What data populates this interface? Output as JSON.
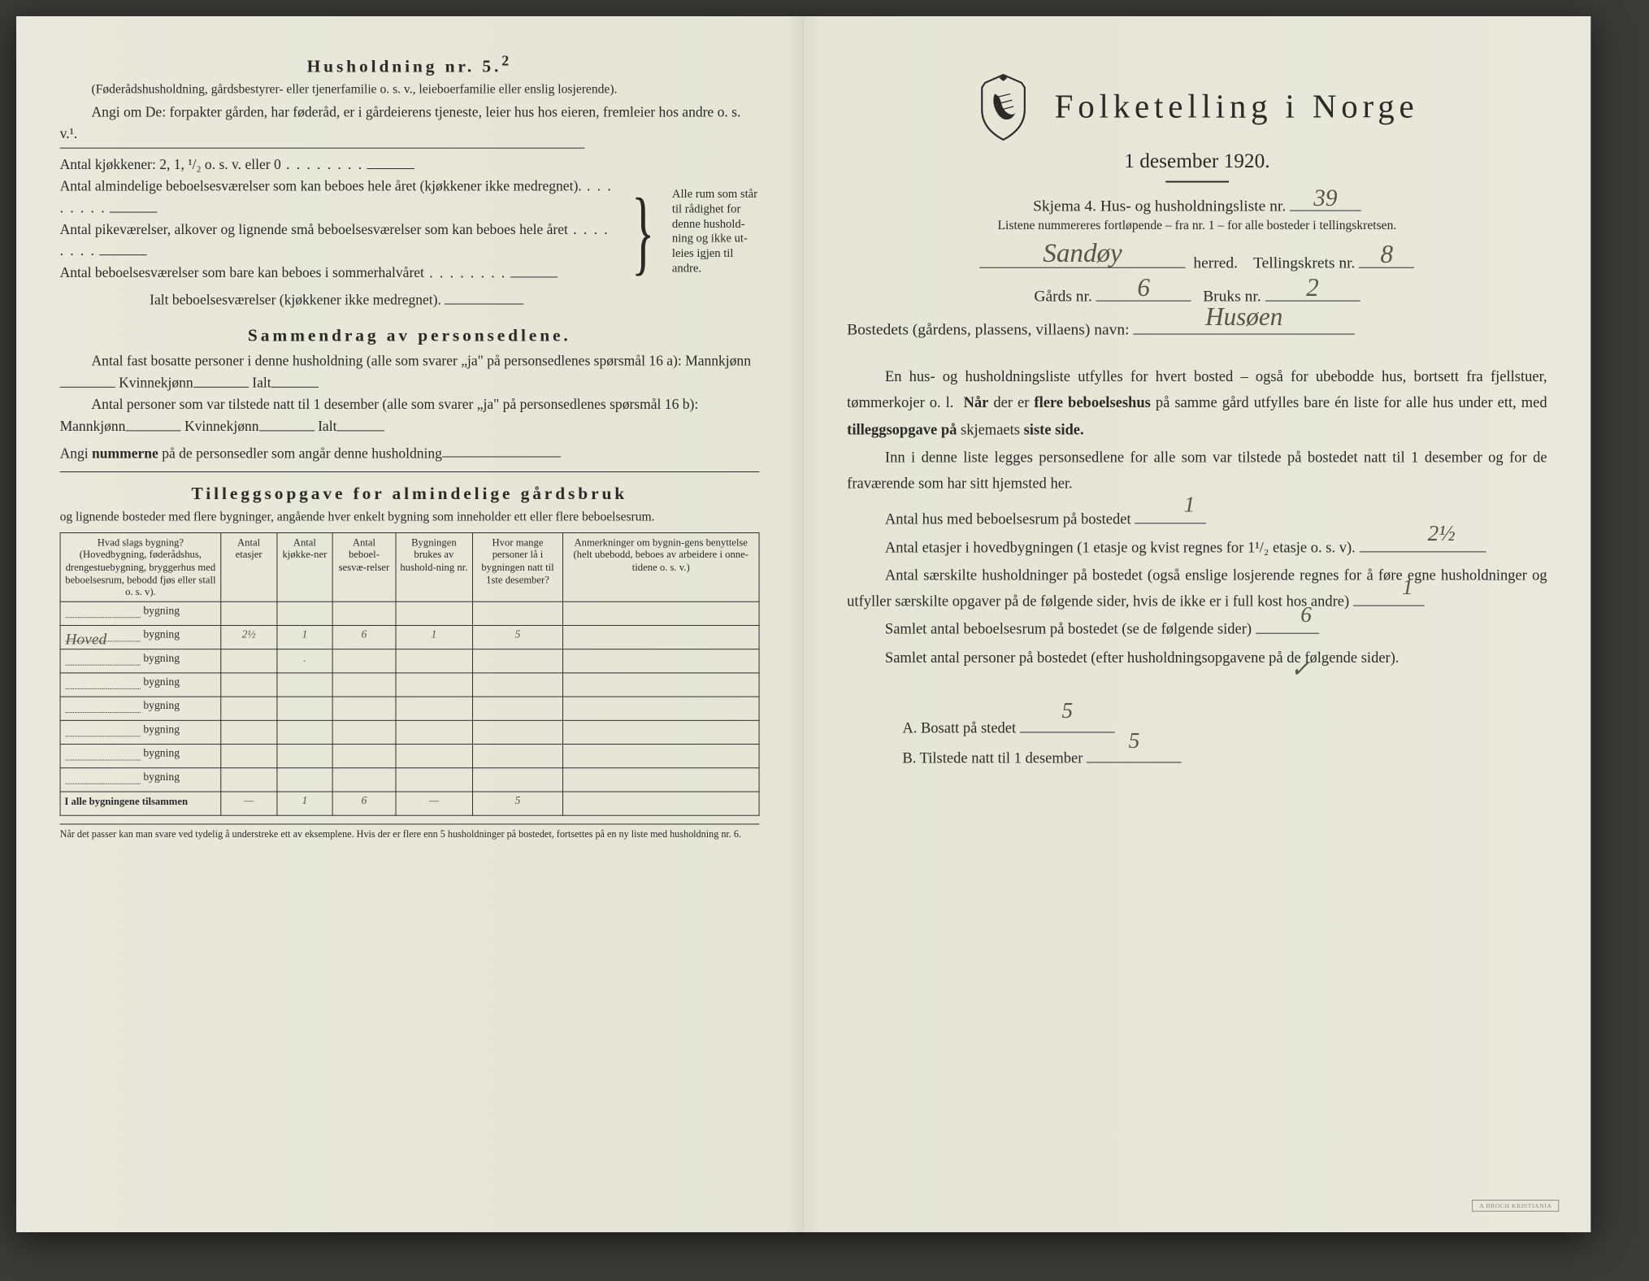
{
  "colors": {
    "paper": "#e8e9dc",
    "ink": "#2a2a28",
    "handwriting": "#555548",
    "background": "#3a3a38"
  },
  "left": {
    "h5_title": "Husholdning nr. 5.",
    "h5_sup": "2",
    "h5_paren": "(Føderådshusholdning, gårdsbestyrer- eller tjenerfamilie o. s. v., leieboerfamilie eller enslig losjerende).",
    "h5_angi": "Angi om De: forpakter gården, har føderåd, er i gårdeierens tjeneste, leier hus hos eieren, fremleier hos andre o. s. v.¹.",
    "kjokkener_label": "Antal kjøkkener: 2, 1, ¹/₂ o. s. v. eller 0",
    "alm_label": "Antal almindelige beboelsesværelser som kan beboes hele året (kjøkkener ikke medregnet).",
    "pike_label": "Antal pikeværelser, alkover og lignende små beboelsesværelser som kan beboes hele året",
    "sommer_label": "Antal beboelsesværelser som bare kan beboes i sommerhalvåret",
    "ialt_label": "Ialt beboelsesværelser (kjøkkener ikke medregnet).",
    "brace_text": "Alle rum som står til rådighet for denne hushold-ning og ikke ut-leies igjen til andre.",
    "sammendrag_title": "Sammendrag av personsedlene.",
    "sammendrag_p1a": "Antal fast bosatte personer i denne husholdning (alle som svarer „ja\" på personsedlenes spørsmål 16 a): Mannkjønn",
    "sammendrag_p1b": "Kvinnekjønn",
    "sammendrag_p1c": "Ialt",
    "sammendrag_p2a": "Antal personer som var tilstede natt til 1 desember (alle som svarer „ja\" på personsedlenes spørsmål 16 b): Mannkjønn",
    "angi_num": "Angi nummerne på de personsedler som angår denne husholdning",
    "tilleggs_title": "Tilleggsopgave for almindelige gårdsbruk",
    "tilleggs_sub": "og lignende bosteder med flere bygninger, angående hver enkelt bygning som inneholder ett eller flere beboelsesrum.",
    "table": {
      "headers": [
        "Hvad slags bygning?\n(Hovedbygning, føderådshus, drengestuebygning, bryggerhus med beboelsesrum, bebodd fjøs eller stall o. s. v).",
        "Antal etasjer",
        "Antal kjøkke-ner",
        "Antal beboel-sesvæ-relser",
        "Bygningen brukes av hushold-ning nr.",
        "Hvor mange personer lå i bygningen natt til 1ste desember?",
        "Anmerkninger om bygnin-gens benyttelse (helt ubebodd, beboes av arbeidere i onne-tidene o. s. v.)"
      ],
      "bygning_word": "bygning",
      "rows": [
        {
          "name_hw": "",
          "et": "",
          "kj": "",
          "be": "",
          "hn": "",
          "pe": "",
          "an": ""
        },
        {
          "name_hw": "Hoved",
          "et": "2½",
          "kj": "1",
          "be": "6",
          "hn": "1",
          "pe": "5",
          "an": ""
        },
        {
          "name_hw": "",
          "et": "",
          "kj": ".",
          "be": "",
          "hn": "",
          "pe": "",
          "an": ""
        },
        {
          "name_hw": "",
          "et": "",
          "kj": "",
          "be": "",
          "hn": "",
          "pe": "",
          "an": ""
        },
        {
          "name_hw": "",
          "et": "",
          "kj": "",
          "be": "",
          "hn": "",
          "pe": "",
          "an": ""
        },
        {
          "name_hw": "",
          "et": "",
          "kj": "",
          "be": "",
          "hn": "",
          "pe": "",
          "an": ""
        },
        {
          "name_hw": "",
          "et": "",
          "kj": "",
          "be": "",
          "hn": "",
          "pe": "",
          "an": ""
        },
        {
          "name_hw": "",
          "et": "",
          "kj": "",
          "be": "",
          "hn": "",
          "pe": "",
          "an": ""
        }
      ],
      "total_label": "I alle bygningene tilsammen",
      "total": {
        "et": "—",
        "kj": "1",
        "be": "6",
        "hn": "—",
        "pe": "5",
        "an": ""
      }
    },
    "footnote": "Når det passer kan man svare ved tydelig å understreke ett av eksemplene.\nHvis der er flere enn 5 husholdninger på bostedet, fortsettes på en ny liste med husholdning nr. 6."
  },
  "right": {
    "title": "Folketelling i Norge",
    "subtitle": "1 desember 1920.",
    "skjema_a": "Skjema 4.  Hus- og husholdningsliste nr.",
    "skjema_nr_hw": "39",
    "note": "Listene nummereres fortløpende – fra nr. 1 – for alle bosteder i tellingskretsen.",
    "herred_hw": "Sandøy",
    "herred_lbl": "herred.",
    "tell_lbl": "Tellingskrets nr.",
    "tell_nr_hw": "8",
    "gards_lbl": "Gårds nr.",
    "gards_nr_hw": "6",
    "bruks_lbl": "Bruks nr.",
    "bruks_nr_hw": "2",
    "bosted_lbl": "Bostedets (gårdens, plassens, villaens) navn:",
    "bosted_hw": "Husøen",
    "para1": "En hus- og husholdningsliste utfylles for hvert bosted – også for ubebodde hus, bortsett fra fjellstuer, tømmerkojer o. l.  Når der er flere beboelseshus på samme gård utfylles bare én liste for alle hus under ett, med tilleggsopgave på skjemaets siste side.",
    "para2": "Inn i denne liste legges personsedlene for alle som var tilstede på bostedet natt til 1 desember og for de fraværende som har sitt hjemsted her.",
    "q1_lbl": "Antal hus med beboelsesrum på bostedet",
    "q1_hw": "1",
    "q2_lbl_a": "Antal etasjer i hovedbygningen (1 etasje og kvist regnes for 1¹/₂ etasje o. s. v).",
    "q2_hw": "2½",
    "q3_lbl": "Antal særskilte husholdninger på bostedet (også enslige losjerende regnes for å føre egne husholdninger og utfyller særskilte opgaver på de følgende sider, hvis de ikke er i full kost hos andre)",
    "q3_hw": "1",
    "q4_lbl": "Samlet antal beboelsesrum på bostedet (se de følgende sider)",
    "q4_hw": "6",
    "q5_lbl": "Samlet antal personer på bostedet (efter husholdningsopgavene på de følgende sider).",
    "qA_lbl": "A.  Bosatt på stedet",
    "qA_hw": "5",
    "qB_lbl": "B.  Tilstede natt til 1 desember",
    "qB_hw": "5",
    "checkmark": "✓"
  }
}
